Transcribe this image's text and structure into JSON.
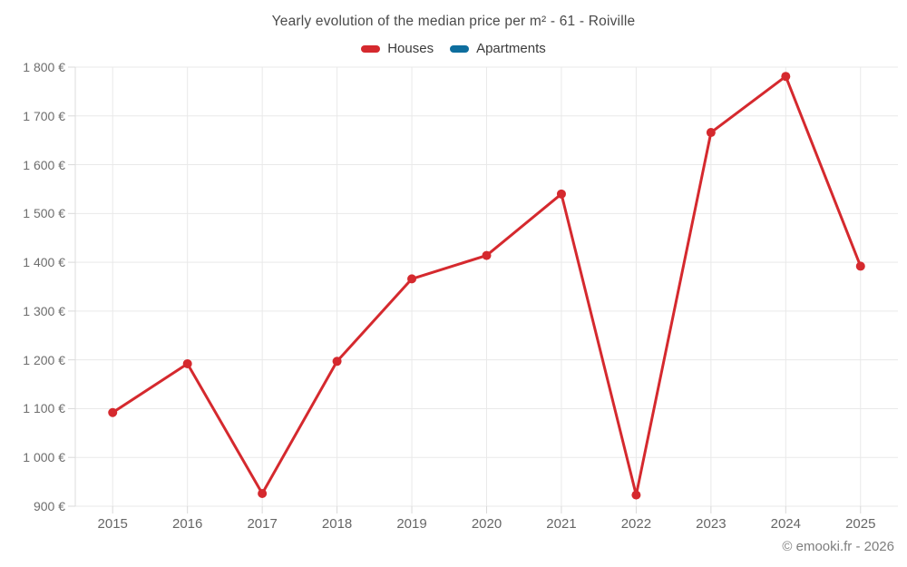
{
  "title": "Yearly evolution of the median price per m² - 61 - Roiville",
  "legend": {
    "items": [
      {
        "label": "Houses",
        "color": "#d5292e"
      },
      {
        "label": "Apartments",
        "color": "#0e6e9e"
      }
    ]
  },
  "footer": {
    "text": "© emooki.fr - 2026"
  },
  "chart_data": {
    "type": "line",
    "title": "Yearly evolution of the median price per m² - 61 - Roiville",
    "x": [
      2015,
      2016,
      2017,
      2018,
      2019,
      2020,
      2021,
      2022,
      2023,
      2024,
      2025
    ],
    "xtick_labels": [
      "2015",
      "2016",
      "2017",
      "2018",
      "2019",
      "2020",
      "2021",
      "2022",
      "2023",
      "2024",
      "2025"
    ],
    "series": [
      {
        "name": "Houses",
        "color": "#d5292e",
        "values": [
          1092,
          1192,
          926,
          1197,
          1366,
          1414,
          1540,
          923,
          1666,
          1781,
          1392
        ]
      },
      {
        "name": "Apartments",
        "color": "#0e6e9e",
        "values": []
      }
    ],
    "ylim": [
      900,
      1800
    ],
    "yticks": [
      900,
      1000,
      1100,
      1200,
      1300,
      1400,
      1500,
      1600,
      1700,
      1800
    ],
    "ytick_labels": [
      "900 €",
      "1 000 €",
      "1 100 €",
      "1 200 €",
      "1 300 €",
      "1 400 €",
      "1 500 €",
      "1 600 €",
      "1 700 €",
      "1 800 €"
    ],
    "y_unit": "€",
    "grid": true,
    "legend_position": "top",
    "marker": "circle"
  }
}
